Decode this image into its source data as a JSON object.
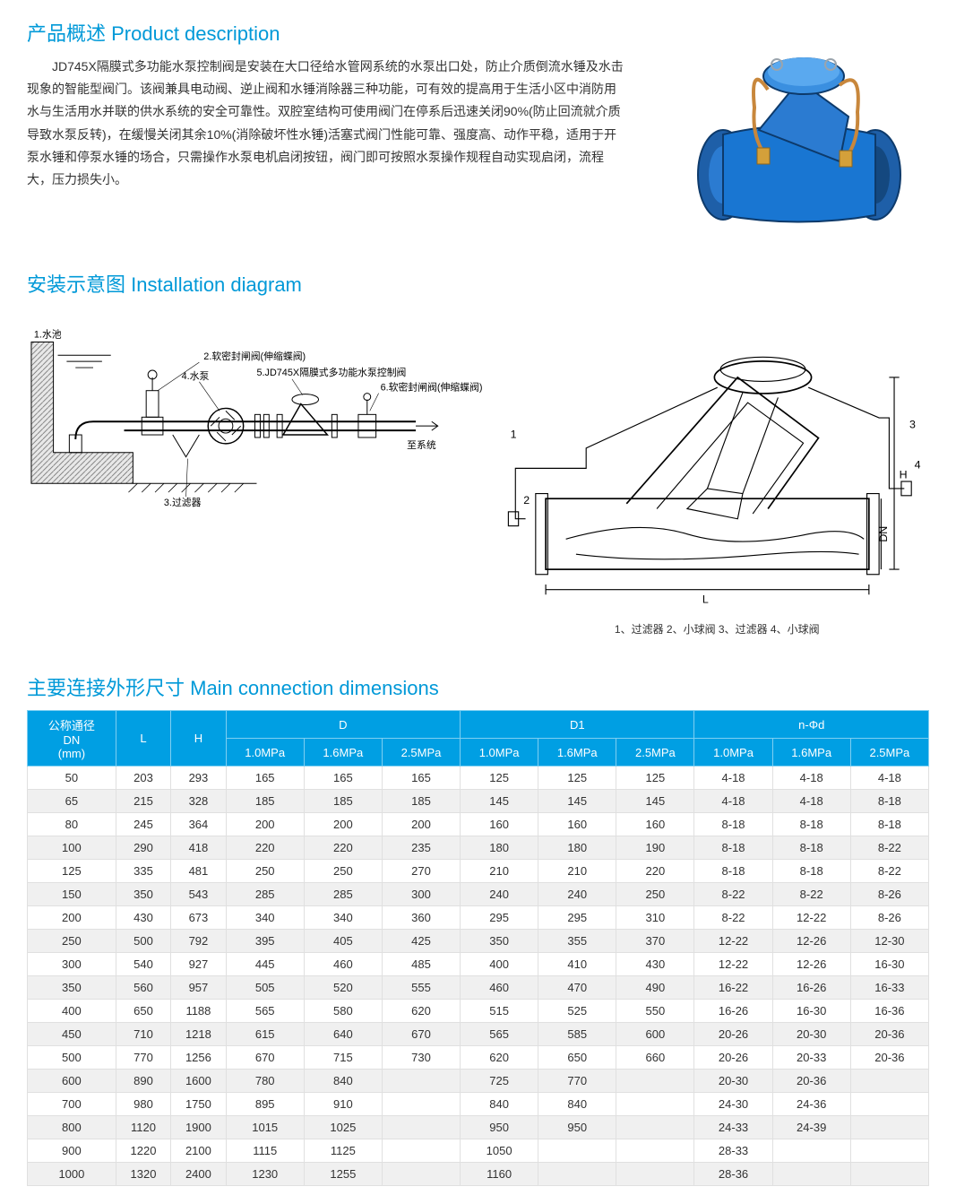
{
  "colors": {
    "heading": "#0099d8",
    "table_header_bg": "#009fe3",
    "table_header_border": "#7fcff1",
    "row_alt_bg": "#f0f0f0",
    "valve_body": "#1976d2",
    "valve_highlight": "#4fa3e8",
    "copper": "#c8873c"
  },
  "sections": {
    "product_desc_title": "产品概述 Product description",
    "install_title": "安装示意图 Installation diagram",
    "dims_title": "主要连接外形尺寸 Main connection dimensions"
  },
  "description": "JD745X隔膜式多功能水泵控制阀是安装在大口径给水管网系统的水泵出口处，防止介质倒流水锤及水击现象的智能型阀门。该阀兼具电动阀、逆止阀和水锤消除器三种功能，可有效的提高用于生活小区中消防用水与生活用水并联的供水系统的安全可靠性。双腔室结构可使用阀门在停系后迅速关闭90%(防止回流就介质导致水泵反转)，在缓慢关闭其余10%(消除破坏性水锤)活塞式阀门性能可靠、强度高、动作平稳，适用于开泵水锤和停泵水锤的场合，只需操作水泵电机启闭按钮，阀门即可按照水泵操作规程自动实现启闭，流程大，压力损失小。",
  "install_labels": {
    "l1": "1.水池",
    "l2": "2.软密封闸阀(伸缩蝶阀)",
    "l3": "3.过滤器",
    "l4": "4.水泵",
    "l5": "5.JD745X隔膜式多功能水泵控制阀",
    "l6": "6.软密封闸阀(伸缩蝶阀)",
    "to_system": "至系统"
  },
  "section_caption": "1、过滤器 2、小球阀 3、过滤器 4、小球阀",
  "table": {
    "headers": {
      "dn": "公称通径\nDN\n(mm)",
      "L": "L",
      "H": "H",
      "D": "D",
      "D1": "D1",
      "nphi": "n-Φd",
      "p10": "1.0MPa",
      "p16": "1.6MPa",
      "p25": "2.5MPa"
    },
    "rows": [
      [
        "50",
        "203",
        "293",
        "165",
        "165",
        "165",
        "125",
        "125",
        "125",
        "4-18",
        "4-18",
        "4-18"
      ],
      [
        "65",
        "215",
        "328",
        "185",
        "185",
        "185",
        "145",
        "145",
        "145",
        "4-18",
        "4-18",
        "8-18"
      ],
      [
        "80",
        "245",
        "364",
        "200",
        "200",
        "200",
        "160",
        "160",
        "160",
        "8-18",
        "8-18",
        "8-18"
      ],
      [
        "100",
        "290",
        "418",
        "220",
        "220",
        "235",
        "180",
        "180",
        "190",
        "8-18",
        "8-18",
        "8-22"
      ],
      [
        "125",
        "335",
        "481",
        "250",
        "250",
        "270",
        "210",
        "210",
        "220",
        "8-18",
        "8-18",
        "8-22"
      ],
      [
        "150",
        "350",
        "543",
        "285",
        "285",
        "300",
        "240",
        "240",
        "250",
        "8-22",
        "8-22",
        "8-26"
      ],
      [
        "200",
        "430",
        "673",
        "340",
        "340",
        "360",
        "295",
        "295",
        "310",
        "8-22",
        "12-22",
        "8-26"
      ],
      [
        "250",
        "500",
        "792",
        "395",
        "405",
        "425",
        "350",
        "355",
        "370",
        "12-22",
        "12-26",
        "12-30"
      ],
      [
        "300",
        "540",
        "927",
        "445",
        "460",
        "485",
        "400",
        "410",
        "430",
        "12-22",
        "12-26",
        "16-30"
      ],
      [
        "350",
        "560",
        "957",
        "505",
        "520",
        "555",
        "460",
        "470",
        "490",
        "16-22",
        "16-26",
        "16-33"
      ],
      [
        "400",
        "650",
        "1188",
        "565",
        "580",
        "620",
        "515",
        "525",
        "550",
        "16-26",
        "16-30",
        "16-36"
      ],
      [
        "450",
        "710",
        "1218",
        "615",
        "640",
        "670",
        "565",
        "585",
        "600",
        "20-26",
        "20-30",
        "20-36"
      ],
      [
        "500",
        "770",
        "1256",
        "670",
        "715",
        "730",
        "620",
        "650",
        "660",
        "20-26",
        "20-33",
        "20-36"
      ],
      [
        "600",
        "890",
        "1600",
        "780",
        "840",
        "",
        "725",
        "770",
        "",
        "20-30",
        "20-36",
        ""
      ],
      [
        "700",
        "980",
        "1750",
        "895",
        "910",
        "",
        "840",
        "840",
        "",
        "24-30",
        "24-36",
        ""
      ],
      [
        "800",
        "1120",
        "1900",
        "1015",
        "1025",
        "",
        "950",
        "950",
        "",
        "24-33",
        "24-39",
        ""
      ],
      [
        "900",
        "1220",
        "2100",
        "1115",
        "1125",
        "",
        "1050",
        "",
        "",
        "28-33",
        "",
        ""
      ],
      [
        "1000",
        "1320",
        "2400",
        "1230",
        "1255",
        "",
        "1160",
        "",
        "",
        "28-36",
        "",
        ""
      ]
    ]
  }
}
